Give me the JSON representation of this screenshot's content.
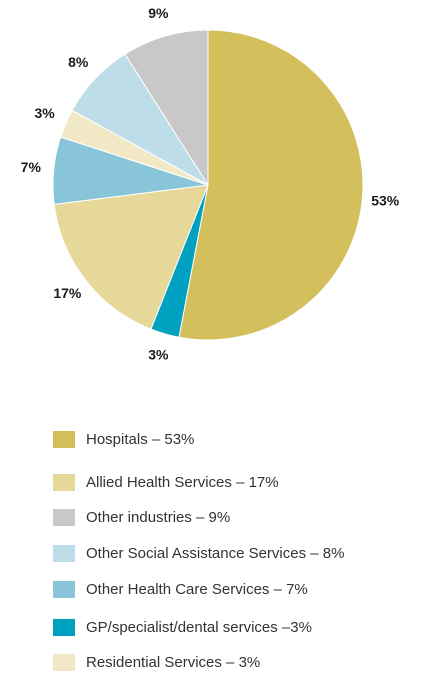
{
  "chart_data": {
    "type": "pie",
    "categories": [
      "Hospitals",
      "GP/specialist/dental services",
      "Allied Health Services",
      "Other Health Care Services",
      "Residential Services",
      "Other Social Assistance Services",
      "Other industries"
    ],
    "values": [
      53,
      3,
      17,
      7,
      3,
      8,
      9
    ],
    "value_labels": [
      "53%",
      "3%",
      "17%",
      "7%",
      "3%",
      "8%",
      "9%"
    ],
    "colors": [
      "#d3bf5c",
      "#00a0c0",
      "#e6d899",
      "#89c5d9",
      "#f1e9c6",
      "#bddde9",
      "#c8c8c9"
    ],
    "legend": [
      {
        "label": "Hospitals – 53%",
        "color": "#d3bf5c"
      },
      {
        "label": "Allied Health Services – 17%",
        "color": "#e6d899"
      },
      {
        "label": "Other industries – 9%",
        "color": "#c8c8c9"
      },
      {
        "label": "Other Social Assistance Services – 8%",
        "color": "#bddde9"
      },
      {
        "label": "Other Health Care Services – 7%",
        "color": "#89c5d9"
      },
      {
        "label": "GP/specialist/dental services –3%",
        "color": "#00a0c0"
      },
      {
        "label": "Residential Services – 3%",
        "color": "#f1e9c6"
      }
    ]
  }
}
